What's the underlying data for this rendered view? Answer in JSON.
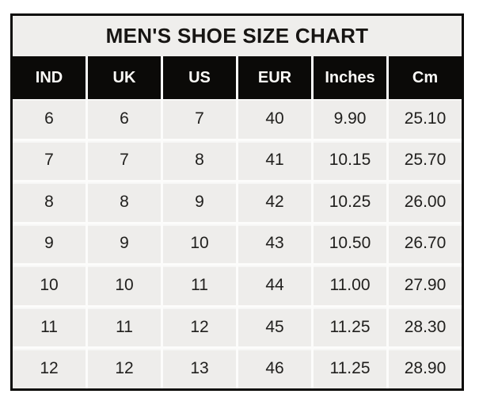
{
  "title": "MEN'S SHOE SIZE CHART",
  "chart_data": {
    "type": "table",
    "title": "MEN'S SHOE SIZE CHART",
    "columns": [
      "IND",
      "UK",
      "US",
      "EUR",
      "Inches",
      "Cm"
    ],
    "rows": [
      [
        "6",
        "6",
        "7",
        "40",
        "9.90",
        "25.10"
      ],
      [
        "7",
        "7",
        "8",
        "41",
        "10.15",
        "25.70"
      ],
      [
        "8",
        "8",
        "9",
        "42",
        "10.25",
        "26.00"
      ],
      [
        "9",
        "9",
        "10",
        "43",
        "10.50",
        "26.70"
      ],
      [
        "10",
        "10",
        "11",
        "44",
        "11.00",
        "27.90"
      ],
      [
        "11",
        "11",
        "12",
        "45",
        "11.25",
        "28.30"
      ],
      [
        "12",
        "12",
        "13",
        "46",
        "11.25",
        "28.90"
      ]
    ],
    "layout": {
      "grid": "on",
      "header_style": "black-band-white-text",
      "body_style": "light-gray-cells-white-gridlines"
    }
  },
  "colors": {
    "border": "#0c0b09",
    "header_bg": "#0b0a08",
    "header_text": "#fbfaf7",
    "title_bg": "#efeeec",
    "cell_bg": "#eeedeb",
    "grid_line": "#fcfcfb",
    "text": "#21201e",
    "page_bg": "#ffffff"
  }
}
